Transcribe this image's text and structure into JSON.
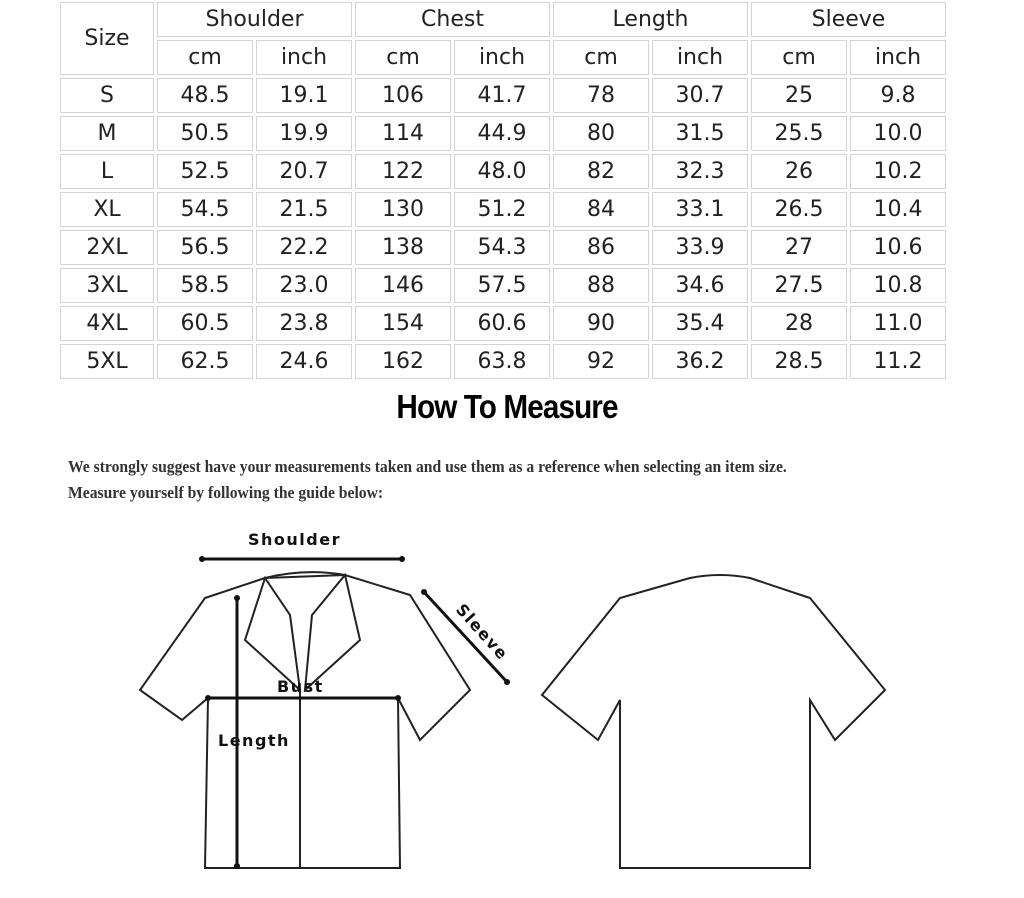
{
  "table": {
    "size_header": "Size",
    "groups": [
      "Shoulder",
      "Chest",
      "Length",
      "Sleeve"
    ],
    "units": [
      "cm",
      "inch",
      "cm",
      "inch",
      "cm",
      "inch",
      "cm",
      "inch"
    ],
    "rows": [
      [
        "S",
        "48.5",
        "19.1",
        "106",
        "41.7",
        "78",
        "30.7",
        "25",
        "9.8"
      ],
      [
        "M",
        "50.5",
        "19.9",
        "114",
        "44.9",
        "80",
        "31.5",
        "25.5",
        "10.0"
      ],
      [
        "L",
        "52.5",
        "20.7",
        "122",
        "48.0",
        "82",
        "32.3",
        "26",
        "10.2"
      ],
      [
        "XL",
        "54.5",
        "21.5",
        "130",
        "51.2",
        "84",
        "33.1",
        "26.5",
        "10.4"
      ],
      [
        "2XL",
        "56.5",
        "22.2",
        "138",
        "54.3",
        "86",
        "33.9",
        "27",
        "10.6"
      ],
      [
        "3XL",
        "58.5",
        "23.0",
        "146",
        "57.5",
        "88",
        "34.6",
        "27.5",
        "10.8"
      ],
      [
        "4XL",
        "60.5",
        "23.8",
        "154",
        "60.6",
        "90",
        "35.4",
        "28",
        "11.0"
      ],
      [
        "5XL",
        "62.5",
        "24.6",
        "162",
        "63.8",
        "92",
        "36.2",
        "28.5",
        "11.2"
      ]
    ]
  },
  "guide": {
    "title": "How To Measure",
    "line1": "We strongly suggest have your measurements taken and use them as a reference when selecting an item size.",
    "line2": "Measure yourself by following the guide below:",
    "labels": {
      "shoulder": "Shoulder",
      "sleeve": "Sleeve",
      "bust": "Bust",
      "length": "Length"
    }
  }
}
